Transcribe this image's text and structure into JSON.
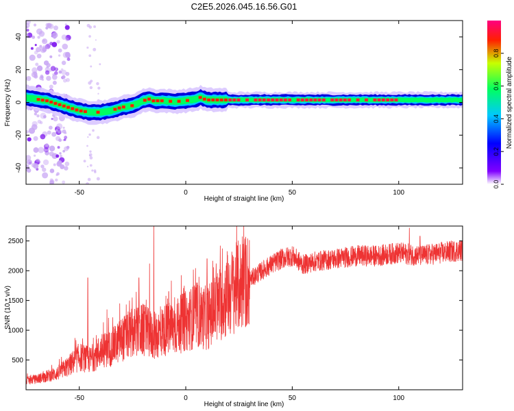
{
  "title": "C2E5.2026.045.16.56.G01",
  "colors": {
    "snr_line": "#ee3333",
    "frame": "#000000",
    "colormap": [
      "#ffffff",
      "#8000ff",
      "#0000ff",
      "#00c8ff",
      "#00ff60",
      "#c8ff00",
      "#ff2000",
      "#ff0080"
    ]
  },
  "chart_data": [
    {
      "type": "heatmap",
      "name": "spectrogram",
      "xlabel": "Height of straight line (km)",
      "ylabel": "Frequency (Hz)",
      "xlim": [
        -75,
        130
      ],
      "ylim": [
        -50,
        50
      ],
      "xticks": [
        -50,
        0,
        50,
        100
      ],
      "xtick_labels": [
        "-50",
        "0",
        "50",
        "100"
      ],
      "yticks": [
        -40,
        -20,
        0,
        20,
        40
      ],
      "ytick_labels": [
        "-40",
        "-20",
        "0",
        "20",
        "40"
      ],
      "ridge": {
        "x": [
          -75,
          -70,
          -65,
          -60,
          -55,
          -50,
          -45,
          -40,
          -35,
          -30,
          -25,
          -20,
          -17,
          -15,
          -10,
          -5,
          0,
          5,
          7,
          10,
          15,
          20,
          30,
          50,
          70,
          100,
          130
        ],
        "freq": [
          3,
          2,
          1,
          -1,
          -3,
          -5,
          -6,
          -6,
          -5,
          -3,
          -2,
          1,
          2,
          1,
          1,
          0.5,
          1,
          2,
          3,
          1.5,
          1.5,
          1.5,
          1.5,
          1.5,
          1.5,
          1.5,
          1.5
        ]
      },
      "colorbar": {
        "label": "Normalized spectral amplitude",
        "range": [
          0,
          1
        ],
        "ticks": [
          0.0,
          0.2,
          0.4,
          0.6,
          0.8
        ],
        "tick_labels": [
          "0.0",
          "0.2",
          "0.4",
          "0.6",
          "0.8"
        ]
      }
    },
    {
      "type": "line",
      "name": "snr",
      "xlabel": "Height of straight line (km)",
      "ylabel": "SNR (10 * v/v)",
      "xlim": [
        -75,
        130
      ],
      "ylim": [
        0,
        2750
      ],
      "xticks": [
        -50,
        0,
        50,
        100
      ],
      "xtick_labels": [
        "-50",
        "0",
        "50",
        "100"
      ],
      "yticks": [
        500,
        1000,
        1500,
        2000,
        2500
      ],
      "ytick_labels": [
        "500",
        "1000",
        "1500",
        "2000",
        "2500"
      ],
      "envelope": {
        "x": [
          -75,
          -70,
          -65,
          -60,
          -55,
          -50,
          -45,
          -40,
          -35,
          -30,
          -25,
          -20,
          -15,
          -10,
          -5,
          0,
          5,
          10,
          15,
          20,
          25,
          30,
          35,
          40,
          45,
          50,
          55,
          60,
          70,
          80,
          90,
          100,
          110,
          120,
          130
        ],
        "y": [
          150,
          180,
          230,
          280,
          400,
          550,
          500,
          650,
          700,
          850,
          950,
          1000,
          900,
          1000,
          1050,
          1150,
          1250,
          1200,
          1400,
          1600,
          1750,
          1850,
          1980,
          2100,
          2200,
          2250,
          2100,
          2150,
          2200,
          2250,
          2250,
          2300,
          2250,
          2300,
          2350
        ]
      },
      "spikes": [
        {
          "x": -46,
          "y": 1880
        },
        {
          "x": -37,
          "y": 1350
        },
        {
          "x": -31,
          "y": 1450
        },
        {
          "x": -22,
          "y": 1880
        },
        {
          "x": -17,
          "y": 2120
        },
        {
          "x": -15,
          "y": 2750
        },
        {
          "x": -8,
          "y": 1650
        },
        {
          "x": 10,
          "y": 2200
        },
        {
          "x": 105,
          "y": 2720
        },
        {
          "x": 110,
          "y": 2580
        }
      ]
    }
  ]
}
